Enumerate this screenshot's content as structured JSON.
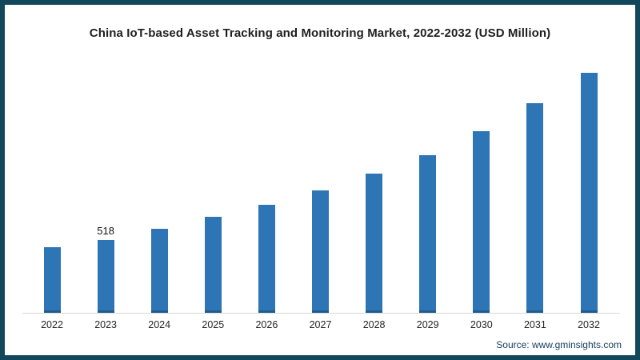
{
  "page": {
    "source": "Source: www.gminsights.com"
  },
  "colors": {
    "bar_fill": "#2D75B5",
    "bar_bottom_edge": "#1F5C8F",
    "frame_border": "#13485C",
    "axis_line": "#D9D9D9",
    "title_text": "#1F1F1F",
    "source_text": "#17405F"
  },
  "chart_data": {
    "type": "bar",
    "title": "China IoT-based Asset Tracking and Monitoring Market, 2022-2032 (USD Million)",
    "xlabel": "",
    "ylabel": "USD Million",
    "categories": [
      "2022",
      "2023",
      "2024",
      "2025",
      "2026",
      "2027",
      "2028",
      "2029",
      "2030",
      "2031",
      "2032"
    ],
    "values": [
      465,
      518,
      600,
      683,
      768,
      870,
      990,
      1120,
      1290,
      1490,
      1710
    ],
    "labeled_points": [
      {
        "category": "2023",
        "label": "518"
      }
    ],
    "ylim": [
      0,
      1900
    ],
    "grid": false,
    "legend": "none"
  }
}
